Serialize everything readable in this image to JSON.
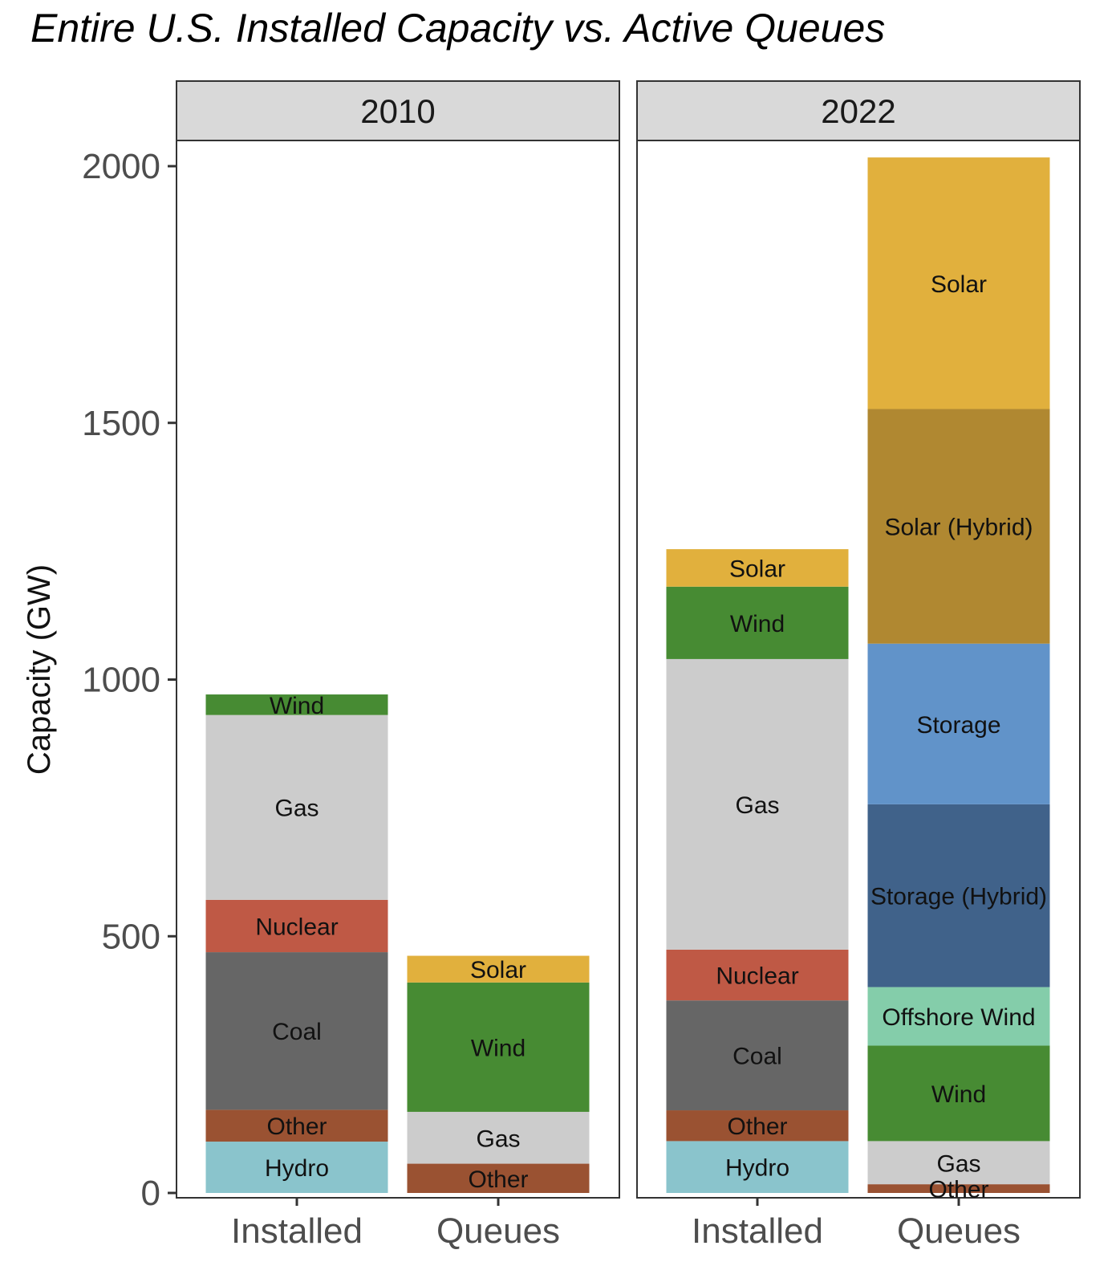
{
  "title": "Entire U.S. Installed Capacity vs. Active Queues",
  "colors": {
    "Hydro": "#8ac4cc",
    "Other": "#9a5232",
    "Coal": "#666666",
    "Nuclear": "#bf5945",
    "Gas": "#cccccc",
    "Wind": "#478b33",
    "Offshore Wind": "#84cdaa",
    "Storage (Hybrid)": "#40628a",
    "Storage": "#6193c9",
    "Solar (Hybrid)": "#b08831",
    "Solar": "#e1b03d"
  },
  "chart_data": {
    "type": "bar",
    "stacked": true,
    "ylabel": "Capacity (GW)",
    "ylim": [
      0,
      2060
    ],
    "yticks": [
      0,
      500,
      1000,
      1500,
      2000
    ],
    "grid": false,
    "facets": [
      {
        "label": "2010",
        "bars": [
          {
            "category": "Installed",
            "segments": [
              {
                "name": "Hydro",
                "value": 100
              },
              {
                "name": "Other",
                "value": 62
              },
              {
                "name": "Coal",
                "value": 307
              },
              {
                "name": "Nuclear",
                "value": 102
              },
              {
                "name": "Gas",
                "value": 360
              },
              {
                "name": "Wind",
                "value": 40
              }
            ]
          },
          {
            "category": "Queues",
            "segments": [
              {
                "name": "Other",
                "value": 57
              },
              {
                "name": "Gas",
                "value": 101
              },
              {
                "name": "Wind",
                "value": 252
              },
              {
                "name": "Solar",
                "value": 52
              }
            ]
          }
        ]
      },
      {
        "label": "2022",
        "bars": [
          {
            "category": "Installed",
            "segments": [
              {
                "name": "Hydro",
                "value": 101
              },
              {
                "name": "Other",
                "value": 60
              },
              {
                "name": "Coal",
                "value": 214
              },
              {
                "name": "Nuclear",
                "value": 99
              },
              {
                "name": "Gas",
                "value": 566
              },
              {
                "name": "Wind",
                "value": 141
              },
              {
                "name": "Solar",
                "value": 73
              }
            ]
          },
          {
            "category": "Queues",
            "segments": [
              {
                "name": "Other",
                "value": 17
              },
              {
                "name": "Gas",
                "value": 84
              },
              {
                "name": "Wind",
                "value": 186
              },
              {
                "name": "Offshore Wind",
                "value": 114
              },
              {
                "name": "Storage (Hybrid)",
                "value": 356
              },
              {
                "name": "Storage",
                "value": 313
              },
              {
                "name": "Solar (Hybrid)",
                "value": 457
              },
              {
                "name": "Solar",
                "value": 490
              }
            ]
          }
        ]
      }
    ]
  }
}
